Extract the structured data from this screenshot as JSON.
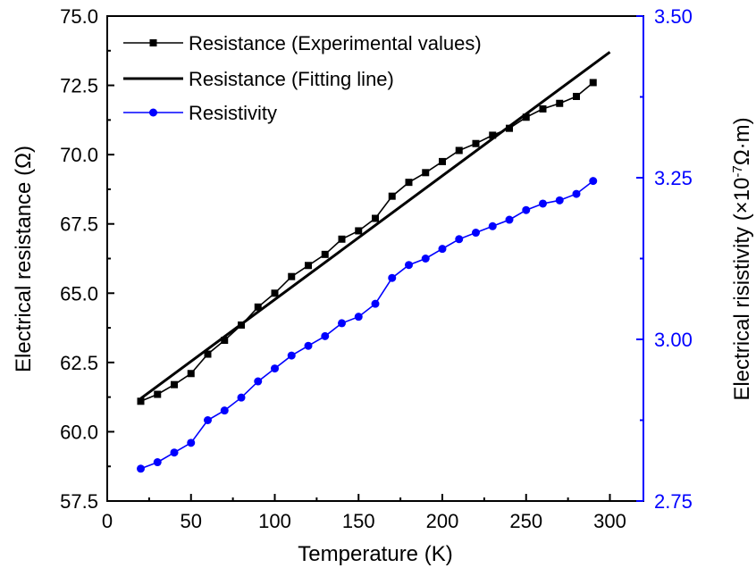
{
  "chart_data": {
    "type": "line",
    "title": "",
    "xlabel": "Temperature (K)",
    "ylabel_left": "Electrical resistance (Ω)",
    "ylabel_right": {
      "prefix": "Electrical risistivity (×10",
      "exponent": "-7",
      "suffix": "Ω·m)"
    },
    "xlim": [
      0,
      320
    ],
    "ylim_left": [
      57.5,
      75.0
    ],
    "ylim_right": [
      2.75,
      3.5
    ],
    "x_ticks": [
      "0",
      "50",
      "100",
      "150",
      "200",
      "250",
      "300"
    ],
    "y_ticks_left": [
      "57.5",
      "60.0",
      "62.5",
      "65.0",
      "67.5",
      "70.0",
      "72.5",
      "75.0"
    ],
    "y_ticks_right": [
      "2.75",
      "3.00",
      "3.25",
      "3.50"
    ],
    "grid": false,
    "legend_position": "top-left",
    "colors": {
      "resistance_experimental": "#000000",
      "resistance_fit": "#000000",
      "resistivity": "#0000ff",
      "right_axis": "#0000ff"
    },
    "series": [
      {
        "name": "Resistance (Experimental values)",
        "axis": "left",
        "marker": "square",
        "x": [
          20,
          30,
          40,
          50,
          60,
          70,
          80,
          90,
          100,
          110,
          120,
          130,
          140,
          150,
          160,
          170,
          180,
          190,
          200,
          210,
          220,
          230,
          240,
          250,
          260,
          270,
          280,
          290
        ],
        "y": [
          61.1,
          61.35,
          61.7,
          62.1,
          62.8,
          63.3,
          63.85,
          64.5,
          65.0,
          65.6,
          66.0,
          66.4,
          66.95,
          67.25,
          67.7,
          68.5,
          69.0,
          69.35,
          69.75,
          70.15,
          70.4,
          70.7,
          70.95,
          71.35,
          71.65,
          71.85,
          72.1,
          72.6
        ]
      },
      {
        "name": "Resistance (Fitting line)",
        "axis": "left",
        "marker": "none",
        "x": [
          20,
          300
        ],
        "y": [
          61.2,
          73.7
        ]
      },
      {
        "name": "Resistivity",
        "axis": "right",
        "marker": "circle",
        "x": [
          20,
          30,
          40,
          50,
          60,
          70,
          80,
          90,
          100,
          110,
          120,
          130,
          140,
          150,
          160,
          170,
          180,
          190,
          200,
          210,
          220,
          230,
          240,
          250,
          260,
          270,
          280,
          290
        ],
        "y": [
          2.8,
          2.81,
          2.825,
          2.84,
          2.875,
          2.89,
          2.91,
          2.935,
          2.955,
          2.975,
          2.99,
          3.005,
          3.025,
          3.035,
          3.055,
          3.095,
          3.115,
          3.125,
          3.14,
          3.155,
          3.165,
          3.175,
          3.185,
          3.2,
          3.21,
          3.215,
          3.225,
          3.245
        ]
      }
    ]
  }
}
